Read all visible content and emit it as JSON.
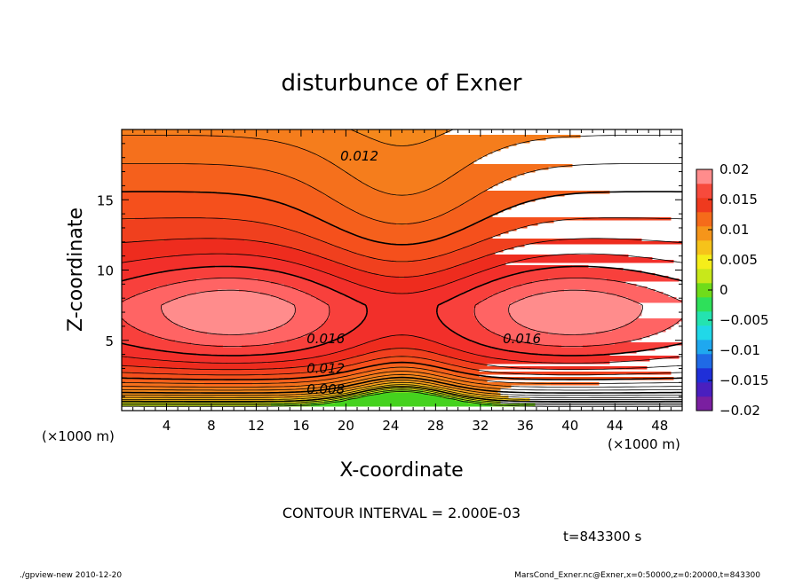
{
  "chart_data": {
    "type": "heatmap",
    "title": "disturbunce of Exner",
    "xlabel": "X-coordinate",
    "ylabel": "Z-coordinate",
    "x_unit_left": "(×1000 m)",
    "x_unit_right": "(×1000 m)",
    "xlim": [
      0,
      50
    ],
    "ylim": [
      0,
      20
    ],
    "x_ticks": [
      4,
      8,
      12,
      16,
      20,
      24,
      28,
      32,
      36,
      40,
      44,
      48
    ],
    "y_ticks": [
      5,
      10,
      15
    ],
    "contour_interval_text": "CONTOUR INTERVAL = 2.000E-03",
    "time_text": "t=843300 s",
    "footer_left": "./gpview-new  2010-12-20",
    "footer_right": "MarsCond_Exner.nc@Exner,x=0:50000,z=0:20000,t=843300",
    "contour_labels": [
      {
        "text": "0.012",
        "x": 19.5,
        "z": 18.1
      },
      {
        "text": "0.016",
        "x": 16.5,
        "z": 5.1
      },
      {
        "text": "0.016",
        "x": 34.0,
        "z": 5.1
      },
      {
        "text": "0.012",
        "x": 16.5,
        "z": 3.0
      },
      {
        "text": "0.008",
        "x": 16.5,
        "z": 1.5
      }
    ],
    "colorbar": {
      "levels": [
        -0.02,
        -0.0175,
        -0.015,
        -0.0125,
        -0.01,
        -0.0075,
        -0.005,
        -0.0025,
        0,
        0.0025,
        0.005,
        0.0075,
        0.01,
        0.0125,
        0.015,
        0.0175,
        0.02
      ],
      "tick_labels": [
        "0.02",
        "0.015",
        "0.01",
        "0.005",
        "0",
        "−0.005",
        "−0.01",
        "−0.015",
        "−0.02"
      ],
      "colors": [
        "#7a1fa0",
        "#4a1fbf",
        "#1f2fd8",
        "#1f6ae6",
        "#1fa8ef",
        "#21d8e8",
        "#24e3b0",
        "#2ee05a",
        "#6fdc1a",
        "#c8e81a",
        "#f5ee1a",
        "#f6c31a",
        "#f5951a",
        "#f56b1a",
        "#ef3a1e",
        "#f74a3c",
        "#ff8c8c"
      ]
    },
    "field_levels": [
      0.0,
      0.001,
      0.002,
      0.003,
      0.004,
      0.005,
      0.006,
      0.007,
      0.008,
      0.009,
      0.01,
      0.011,
      0.012,
      0.013,
      0.014,
      0.015,
      0.016,
      0.017,
      0.018
    ]
  }
}
